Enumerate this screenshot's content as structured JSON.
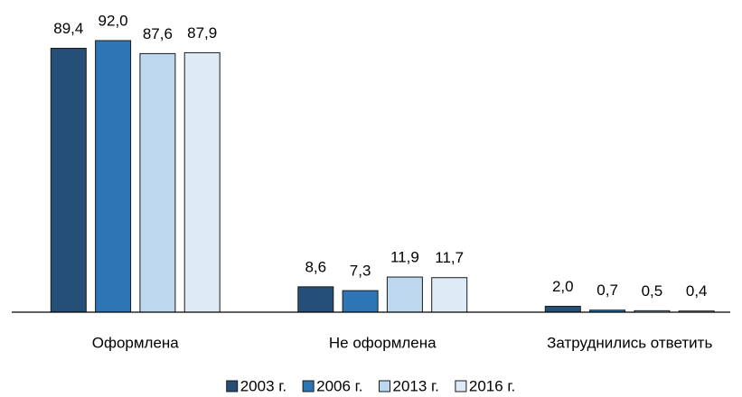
{
  "chart_data": {
    "type": "bar",
    "categories": [
      "Оформлена",
      "Не оформлена",
      "Затруднились ответить"
    ],
    "series": [
      {
        "name": "2003 г.",
        "color": "#264f78",
        "values": [
          89.4,
          8.6,
          2.0
        ],
        "value_labels": [
          "89,4",
          "8,6",
          "2,0"
        ]
      },
      {
        "name": "2006 г.",
        "color": "#2e75b6",
        "values": [
          92.0,
          7.3,
          0.7
        ],
        "value_labels": [
          "92,0",
          "7,3",
          "0,7"
        ]
      },
      {
        "name": "2013 г.",
        "color": "#bdd7ee",
        "values": [
          87.6,
          11.9,
          0.5
        ],
        "value_labels": [
          "87,6",
          "11,9",
          "0,5"
        ]
      },
      {
        "name": "2016 г.",
        "color": "#deebf7",
        "values": [
          87.9,
          11.7,
          0.4
        ],
        "value_labels": [
          "87,9",
          "11,7",
          "0,4"
        ]
      }
    ],
    "legend": "bottom"
  }
}
